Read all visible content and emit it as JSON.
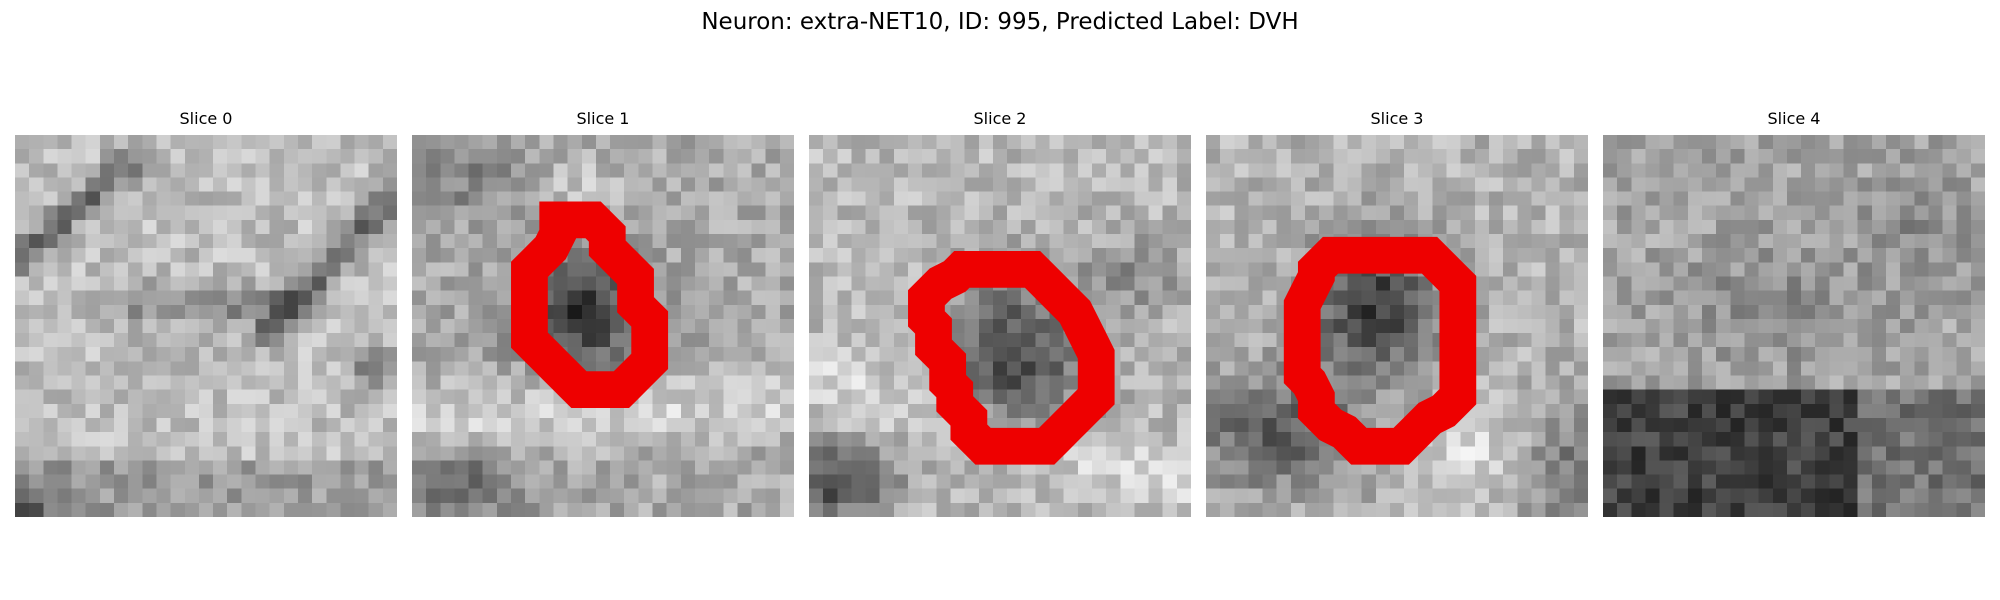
{
  "title": "Neuron: extra-NET10, ID: 995, Predicted Label: DVH",
  "slices": [
    {
      "label": "Slice 0",
      "has_contour": false
    },
    {
      "label": "Slice 1",
      "has_contour": true
    },
    {
      "label": "Slice 2",
      "has_contour": true
    },
    {
      "label": "Slice 3",
      "has_contour": true
    },
    {
      "label": "Slice 4",
      "has_contour": false
    }
  ],
  "colors": {
    "contour": "#ee0000",
    "background": "#ffffff"
  }
}
